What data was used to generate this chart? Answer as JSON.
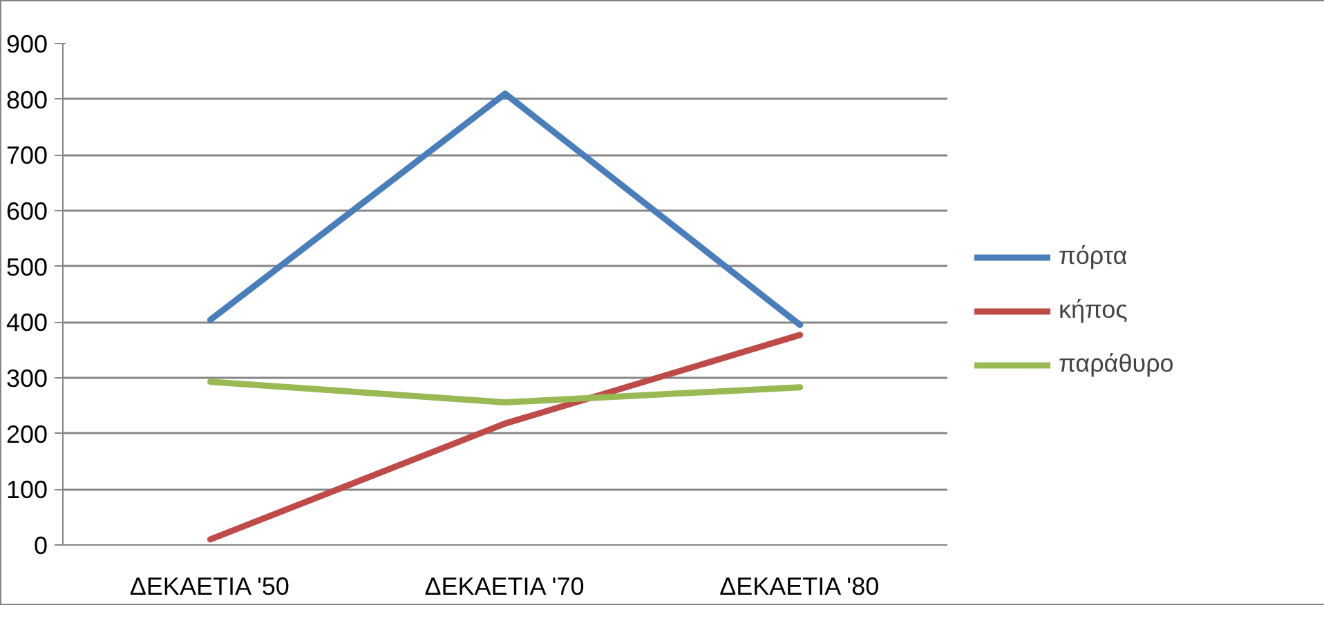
{
  "chart_data": {
    "type": "line",
    "categories": [
      "ΔΕΚΑΕΤΙΑ '50",
      "ΔΕΚΑΕΤΙΑ '70",
      "ΔΕΚΑΕΤΙΑ '80"
    ],
    "series": [
      {
        "name": "πόρτα",
        "color": "#4a7ebb",
        "values": [
          404,
          810,
          395
        ]
      },
      {
        "name": "κήπος",
        "color": "#be4b48",
        "values": [
          10,
          218,
          377
        ]
      },
      {
        "name": "παράθυρο",
        "color": "#98b954",
        "values": [
          293,
          256,
          283
        ]
      }
    ],
    "ylim": [
      0,
      900
    ],
    "yticks": [
      0,
      100,
      200,
      300,
      400,
      500,
      600,
      700,
      800,
      900
    ],
    "grid": "y",
    "legend": "right",
    "marker": "none",
    "line_style": "solid"
  }
}
